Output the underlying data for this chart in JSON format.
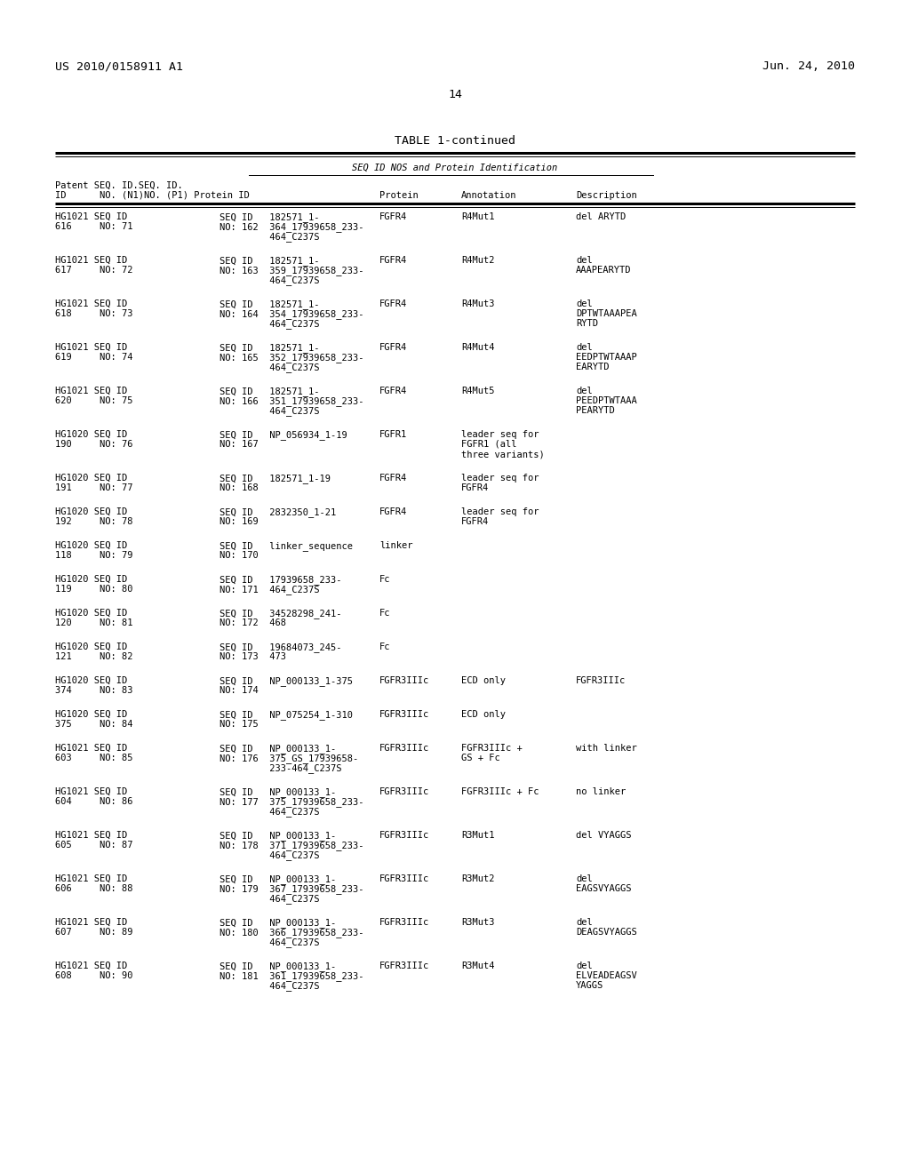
{
  "header_left": "US 2010/0158911 A1",
  "header_right": "Jun. 24, 2010",
  "page_number": "14",
  "table_title": "TABLE 1-continued",
  "col_header_sub": "SEQ ID NOS and Protein Identification",
  "bg_color": "#ffffff",
  "text_color": "#000000",
  "body_font_size": 7.5,
  "title_font_size": 9.5,
  "header_font_size": 9.5
}
